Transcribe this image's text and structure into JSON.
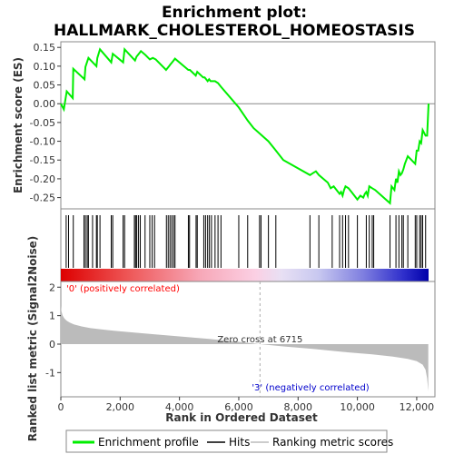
{
  "chart_data": {
    "type": "line",
    "title_line1": "Enrichment plot:",
    "title_line2": "HALLMARK_CHOLESTEROL_HOMEOSTASIS",
    "top_panel": {
      "ylabel": "Enrichment score (ES)",
      "ylim": [
        -0.28,
        0.165
      ],
      "yticks": [
        0.15,
        0.1,
        0.05,
        0.0,
        -0.05,
        -0.1,
        -0.15,
        -0.2,
        -0.25
      ],
      "ytick_labels": [
        "0.15",
        "0.10",
        "0.05",
        "0.00",
        "-0.05",
        "-0.10",
        "-0.15",
        "-0.20",
        "-0.25"
      ],
      "color": "#00ee00",
      "series": [
        {
          "name": "Enrichment profile",
          "x": [
            0,
            100,
            200,
            400,
            420,
            800,
            830,
            930,
            1200,
            1230,
            1320,
            1700,
            1750,
            2100,
            2150,
            2500,
            2550,
            2600,
            2650,
            2700,
            2850,
            3000,
            3100,
            3200,
            3550,
            3600,
            3650,
            3700,
            3750,
            3800,
            3850,
            4300,
            4350,
            4550,
            4600,
            4800,
            4850,
            4900,
            4950,
            5000,
            5050,
            5200,
            5300,
            5400,
            6000,
            6300,
            6500,
            7000,
            7200,
            7500,
            8400,
            8500,
            8600,
            8700,
            9000,
            9100,
            9200,
            9400,
            9450,
            9500,
            9550,
            9600,
            9700,
            9800,
            10000,
            10100,
            10200,
            10250,
            10300,
            10350,
            10400,
            10500,
            10600,
            11100,
            11150,
            11250,
            11300,
            11350,
            11400,
            11450,
            11500,
            11550,
            11600,
            11650,
            11700,
            11950,
            12000,
            12050,
            12100,
            12150,
            12200,
            12300,
            12350,
            12400
          ],
          "y": [
            0.0,
            -0.015,
            0.033,
            0.015,
            0.093,
            0.065,
            0.098,
            0.122,
            0.1,
            0.122,
            0.145,
            0.11,
            0.133,
            0.11,
            0.145,
            0.115,
            0.125,
            0.13,
            0.135,
            0.14,
            0.13,
            0.118,
            0.122,
            0.118,
            0.09,
            0.095,
            0.1,
            0.105,
            0.11,
            0.115,
            0.12,
            0.09,
            0.09,
            0.075,
            0.085,
            0.07,
            0.07,
            0.065,
            0.06,
            0.065,
            0.06,
            0.06,
            0.055,
            0.045,
            -0.01,
            -0.045,
            -0.065,
            -0.1,
            -0.12,
            -0.15,
            -0.19,
            -0.185,
            -0.18,
            -0.19,
            -0.21,
            -0.225,
            -0.22,
            -0.24,
            -0.235,
            -0.245,
            -0.23,
            -0.22,
            -0.225,
            -0.235,
            -0.255,
            -0.245,
            -0.25,
            -0.24,
            -0.235,
            -0.245,
            -0.22,
            -0.225,
            -0.23,
            -0.265,
            -0.22,
            -0.23,
            -0.2,
            -0.21,
            -0.18,
            -0.19,
            -0.185,
            -0.175,
            -0.16,
            -0.15,
            -0.14,
            -0.16,
            -0.125,
            -0.125,
            -0.1,
            -0.105,
            -0.07,
            -0.085,
            -0.085,
            0.0
          ]
        }
      ]
    },
    "hits_panel": {
      "hits": [
        180,
        260,
        420,
        780,
        830,
        890,
        930,
        1070,
        1200,
        1230,
        1320,
        1700,
        1750,
        2100,
        2150,
        2480,
        2520,
        2560,
        2620,
        2680,
        2840,
        3000,
        3080,
        3160,
        3560,
        3620,
        3680,
        3740,
        3800,
        3850,
        4300,
        4340,
        4560,
        4600,
        4820,
        4880,
        4950,
        5010,
        5080,
        5200,
        5300,
        5400,
        6000,
        6300,
        6700,
        6750,
        7000,
        7250,
        8400,
        8700,
        9150,
        9400,
        9500,
        9600,
        9700,
        10000,
        10300,
        10400,
        10500,
        10550,
        11100,
        11300,
        11400,
        11500,
        11550,
        11700,
        11950,
        12000,
        12100,
        12150,
        12200,
        12300
      ]
    },
    "bottom_panel": {
      "ylabel": "Ranked list metric (Signal2Noise)",
      "xlabel": "Rank in Ordered Dataset",
      "ylim": [
        -1.85,
        2.2
      ],
      "yticks": [
        2,
        1,
        0,
        -1
      ],
      "ytick_labels": [
        "2",
        "1",
        "0",
        "-1"
      ],
      "fill_color": "#bbbbbb",
      "metric": {
        "x": [
          0,
          20,
          60,
          120,
          200,
          300,
          450,
          700,
          1000,
          1500,
          2000,
          3000,
          4000,
          5000,
          6000,
          6715,
          7500,
          8500,
          9500,
          10500,
          11200,
          11700,
          12000,
          12200,
          12300,
          12350,
          12390
        ],
        "y": [
          1.35,
          1.15,
          1.0,
          0.9,
          0.82,
          0.76,
          0.69,
          0.62,
          0.56,
          0.5,
          0.45,
          0.36,
          0.27,
          0.18,
          0.08,
          0.0,
          -0.08,
          -0.17,
          -0.27,
          -0.36,
          -0.44,
          -0.52,
          -0.6,
          -0.72,
          -0.9,
          -1.2,
          -1.65
        ]
      },
      "zero_cross_label": "Zero cross at 6715",
      "zero_cross_x": 6715,
      "pos_label": "'0' (positively correlated)",
      "neg_label": "'3' (negatively correlated)",
      "pos_color": "#ff0000",
      "neg_color": "#0000cc"
    },
    "xlim": [
      0,
      12400
    ],
    "xticks": [
      0,
      2000,
      4000,
      6000,
      8000,
      10000,
      12000
    ],
    "xtick_labels": [
      "0",
      "2,000",
      "4,000",
      "6,000",
      "8,000",
      "10,000",
      "12,000"
    ],
    "legend": {
      "placement": "bottom",
      "items": [
        {
          "name": "Enrichment profile",
          "color": "#00ee00"
        },
        {
          "name": "Hits",
          "color": "#000000"
        },
        {
          "name": "Ranking metric scores",
          "color": "#bbbbbb"
        }
      ]
    }
  }
}
